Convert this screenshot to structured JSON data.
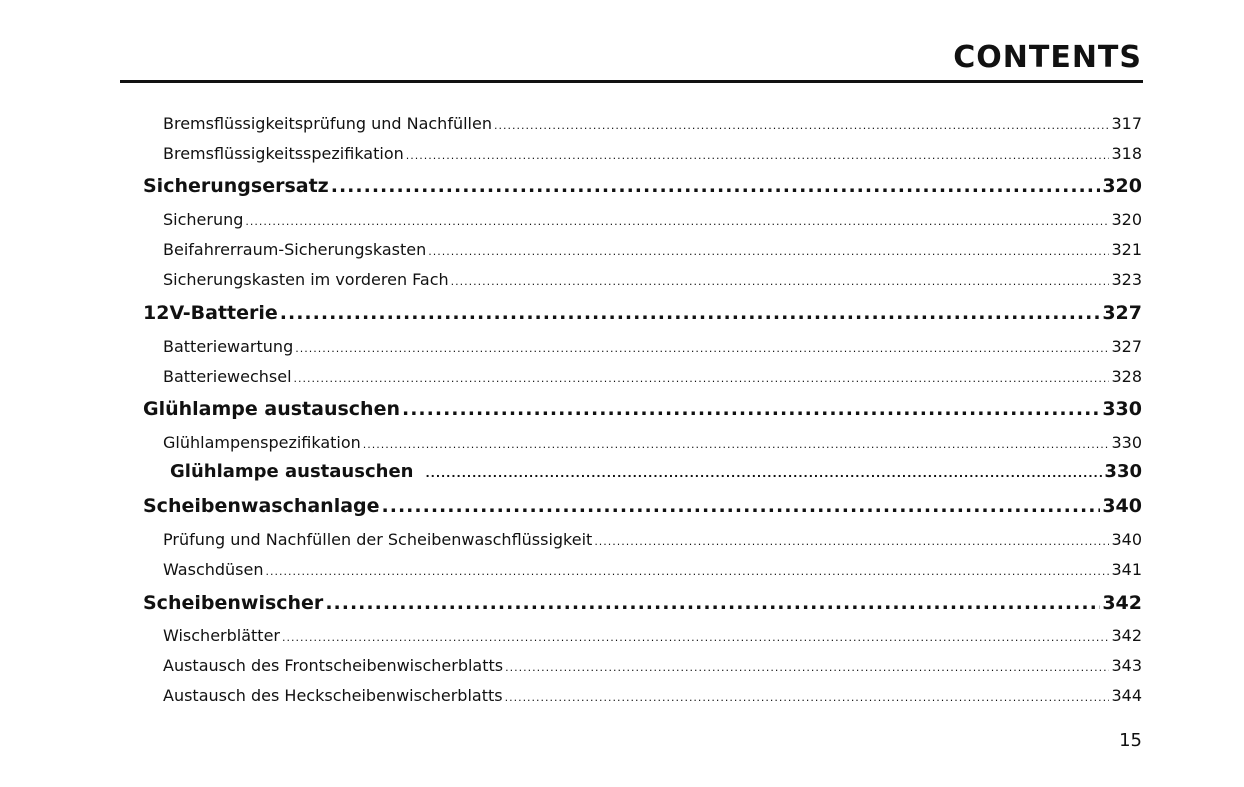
{
  "header": {
    "title": "CONTENTS"
  },
  "entries": [
    {
      "level": "sub",
      "label": "Bremsflüssigkeitsprüfung und Nachfüllen",
      "page": "317"
    },
    {
      "level": "sub",
      "label": "Bremsflüssigkeitsspezifikation",
      "page": "318"
    },
    {
      "level": "main",
      "label": "Sicherungsersatz",
      "page": "320"
    },
    {
      "level": "sub",
      "label": "Sicherung",
      "page": "320"
    },
    {
      "level": "sub",
      "label": "Beifahrerraum-Sicherungskasten",
      "page": "321"
    },
    {
      "level": "sub",
      "label": "Sicherungskasten im vorderen Fach",
      "page": "323"
    },
    {
      "level": "main",
      "label": "12V-Batterie",
      "page": "327"
    },
    {
      "level": "sub",
      "label": "Batteriewartung",
      "page": "327"
    },
    {
      "level": "sub",
      "label": "Batteriewechsel",
      "page": "328"
    },
    {
      "level": "main",
      "label": "Glühlampe austauschen",
      "page": "330"
    },
    {
      "level": "sub",
      "label": "Glühlampenspezifikation",
      "page": "330"
    },
    {
      "level": "sub-strong",
      "label": "Glühlampe austauschen",
      "page": "330"
    },
    {
      "level": "main",
      "label": "Scheibenwaschanlage",
      "page": "340"
    },
    {
      "level": "sub",
      "label": "Prüfung und Nachfüllen der Scheibenwaschflüssigkeit",
      "page": "340"
    },
    {
      "level": "sub",
      "label": "Waschdüsen",
      "page": "341"
    },
    {
      "level": "main",
      "label": "Scheibenwischer",
      "page": "342"
    },
    {
      "level": "sub",
      "label": "Wischerblätter",
      "page": "342"
    },
    {
      "level": "sub",
      "label": "Austausch des Frontscheibenwischerblatts",
      "page": "343"
    },
    {
      "level": "sub",
      "label": "Austausch des Heckscheibenwischerblatts",
      "page": "344"
    }
  ],
  "footer": {
    "page_number": "15"
  }
}
